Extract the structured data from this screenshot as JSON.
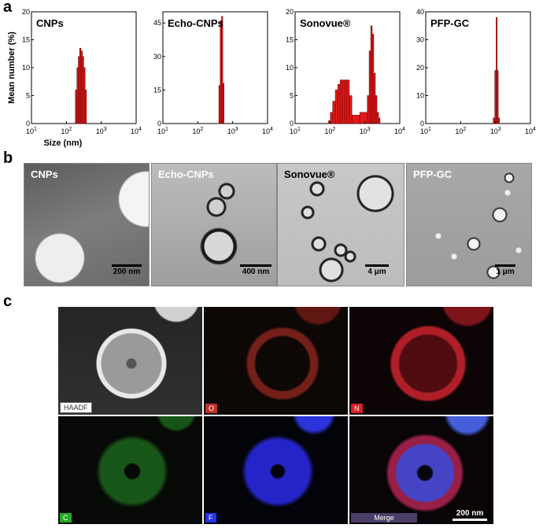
{
  "panels": {
    "a": "a",
    "b": "b",
    "c": "c"
  },
  "chart_data": [
    {
      "type": "bar",
      "title": "CNPs",
      "ylabel": "Mean number (%)",
      "xlabel": "Size (nm)",
      "xscale": "log",
      "xlim": [
        10,
        10000
      ],
      "ylim": [
        0,
        20
      ],
      "yticks": [
        "0",
        "5",
        "10",
        "15",
        "20"
      ],
      "xticks": [
        "10^1",
        "10^2",
        "10^3",
        "10^4"
      ],
      "bins": [
        [
          190,
          6
        ],
        [
          210,
          10
        ],
        [
          230,
          12
        ],
        [
          250,
          13.5
        ],
        [
          275,
          13
        ],
        [
          300,
          12
        ],
        [
          330,
          10
        ],
        [
          360,
          6
        ]
      ]
    },
    {
      "type": "bar",
      "title": "Echo-CNPs",
      "ylabel": "",
      "xlabel": "",
      "xscale": "log",
      "xlim": [
        10,
        10000
      ],
      "ylim": [
        0,
        50
      ],
      "yticks": [
        "0",
        "15",
        "30",
        "45"
      ],
      "xticks": [
        "10^1",
        "10^2",
        "10^3",
        "10^4"
      ],
      "bins": [
        [
          420,
          17
        ],
        [
          460,
          46
        ],
        [
          500,
          48
        ],
        [
          540,
          18
        ]
      ]
    },
    {
      "type": "bar",
      "title": "Sonovue®",
      "ylabel": "",
      "xlabel": "",
      "xscale": "log",
      "xlim": [
        10,
        10000
      ],
      "ylim": [
        0,
        20
      ],
      "yticks": [
        "0",
        "5",
        "10",
        "15",
        "20"
      ],
      "xticks": [
        "10^1",
        "10^2",
        "10^3",
        "10^4"
      ],
      "bins": [
        [
          95,
          0.5
        ],
        [
          110,
          2
        ],
        [
          130,
          4
        ],
        [
          155,
          6
        ],
        [
          180,
          7
        ],
        [
          210,
          7.8
        ],
        [
          245,
          7.8
        ],
        [
          285,
          7.8
        ],
        [
          330,
          7.8
        ],
        [
          390,
          5
        ],
        [
          460,
          1.5
        ],
        [
          1100,
          2
        ],
        [
          1250,
          5
        ],
        [
          1400,
          13
        ],
        [
          1550,
          17.5
        ],
        [
          1700,
          16
        ],
        [
          1900,
          9
        ],
        [
          2100,
          5
        ],
        [
          2350,
          2
        ],
        [
          2600,
          1
        ]
      ]
    },
    {
      "type": "bar",
      "title": "PFP-GC",
      "ylabel": "",
      "xlabel": "",
      "xscale": "log",
      "xlim": [
        10,
        10000
      ],
      "ylim": [
        0,
        40
      ],
      "yticks": [
        "0",
        "10",
        "20",
        "30",
        "40"
      ],
      "xticks": [
        "10^1",
        "10^2",
        "10^3",
        "10^4"
      ],
      "bins": [
        [
          900,
          2
        ],
        [
          1000,
          19
        ],
        [
          1080,
          38
        ],
        [
          1160,
          19
        ],
        [
          1240,
          2
        ]
      ]
    }
  ],
  "micrographs": [
    {
      "label": "CNPs",
      "scale": "200 nm"
    },
    {
      "label": "Echo-CNPs",
      "scale": "400 nm"
    },
    {
      "label": "Sonovue®",
      "scale": "4 μm"
    },
    {
      "label": "PFP-GC",
      "scale": "1 μm"
    }
  ],
  "eds_maps": [
    {
      "tag": "HAADF",
      "color": "#ffffff"
    },
    {
      "tag": "O",
      "color": "#e23a2a"
    },
    {
      "tag": "N",
      "color": "#e0202a"
    },
    {
      "tag": "C",
      "color": "#33cc33"
    },
    {
      "tag": "F",
      "color": "#3344ff"
    },
    {
      "tag": "Merge",
      "color": "#ffffff"
    }
  ],
  "eds_scale": "200 nm"
}
